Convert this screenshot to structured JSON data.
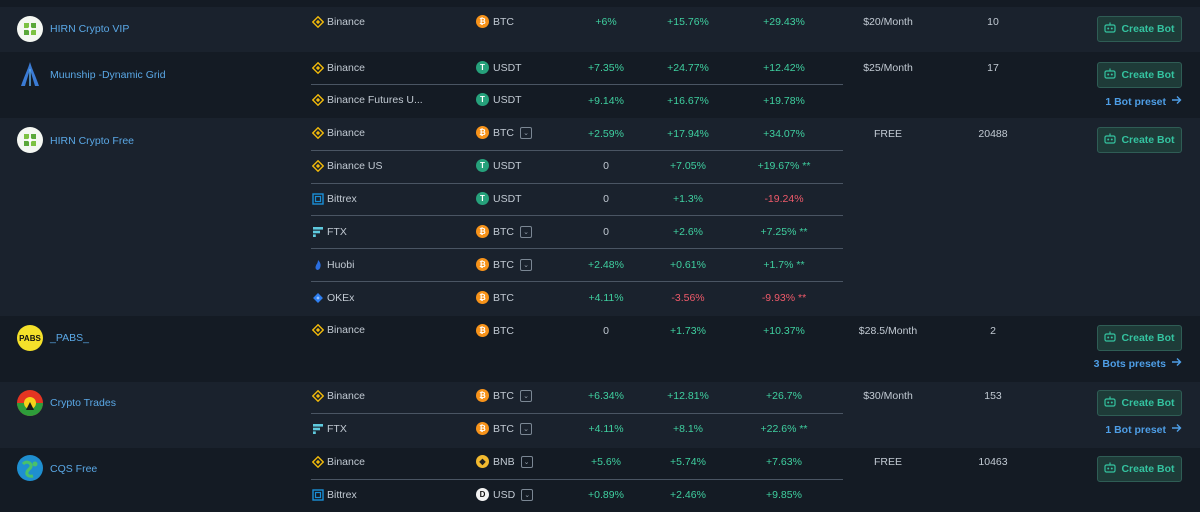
{
  "rows": [
    {
      "name": "HIRN Crypto VIP",
      "exchange": "Binance",
      "coin": "BTC",
      "c1": "+6%",
      "c2": "+15.76%",
      "c3": "+29.43%",
      "price": "$20/Month",
      "users": "10",
      "button": "Create Bot"
    },
    {
      "name": "Muunship -Dynamic Grid",
      "exchange": "Binance",
      "coin": "USDT",
      "c1": "+7.35%",
      "c2": "+24.77%",
      "c3": "+12.42%",
      "price": "$25/Month",
      "users": "17",
      "button": "Create Bot"
    },
    {
      "exchange": "Binance Futures U...",
      "coin": "USDT",
      "c1": "+9.14%",
      "c2": "+16.67%",
      "c3": "+19.78%",
      "preset": "1 Bot preset"
    },
    {
      "name": "HIRN Crypto Free",
      "exchange": "Binance",
      "coin": "BTC",
      "c1": "+2.59%",
      "c2": "+17.94%",
      "c3": "+34.07%",
      "price": "FREE",
      "users": "20488",
      "button": "Create Bot"
    },
    {
      "exchange": "Binance US",
      "coin": "USDT",
      "c1": "0",
      "c2": "+7.05%",
      "c3": "+19.67% **"
    },
    {
      "exchange": "Bittrex",
      "coin": "USDT",
      "c1": "0",
      "c2": "+1.3%",
      "c3": "-19.24%"
    },
    {
      "exchange": "FTX",
      "coin": "BTC",
      "c1": "0",
      "c2": "+2.6%",
      "c3": "+7.25% **"
    },
    {
      "exchange": "Huobi",
      "coin": "BTC",
      "c1": "+2.48%",
      "c2": "+0.61%",
      "c3": "+1.7% **"
    },
    {
      "exchange": "OKEx",
      "coin": "BTC",
      "c1": "+4.11%",
      "c2": "-3.56%",
      "c3": "-9.93% **"
    },
    {
      "name": "_PABS_",
      "logo_text": "PABS",
      "exchange": "Binance",
      "coin": "BTC",
      "c1": "0",
      "c2": "+1.73%",
      "c3": "+10.37%",
      "price": "$28.5/Month",
      "users": "2",
      "button": "Create Bot",
      "preset": "3 Bots presets"
    },
    {
      "name": "Crypto Trades",
      "exchange": "Binance",
      "coin": "BTC",
      "c1": "+6.34%",
      "c2": "+12.81%",
      "c3": "+26.7%",
      "price": "$30/Month",
      "users": "153",
      "button": "Create Bot"
    },
    {
      "exchange": "FTX",
      "coin": "BTC",
      "c1": "+4.11%",
      "c2": "+8.1%",
      "c3": "+22.6% **",
      "preset": "1 Bot preset"
    },
    {
      "name": "CQS Free",
      "exchange": "Binance",
      "coin": "BNB",
      "c1": "+5.6%",
      "c2": "+5.74%",
      "c3": "+7.63%",
      "price": "FREE",
      "users": "10463",
      "button": "Create Bot"
    },
    {
      "exchange": "Bittrex",
      "coin": "USD",
      "c1": "+0.89%",
      "c2": "+2.46%",
      "c3": "+9.85%"
    }
  ],
  "colors": {
    "positive": "#3fd0a0",
    "negative": "#ef5a6a",
    "link": "#5aa8e6",
    "button": "#34c3a0"
  }
}
